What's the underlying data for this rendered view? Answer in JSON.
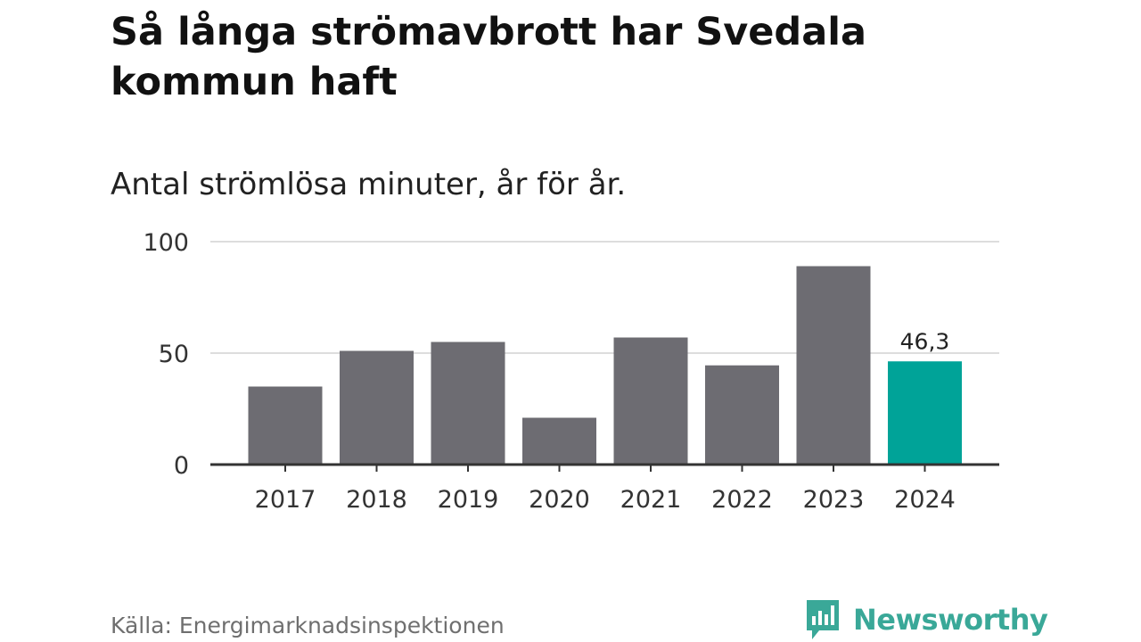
{
  "title": "Så långa strömavbrott har Svedala kommun haft",
  "subtitle": "Antal strömlösa minuter, år för år.",
  "source": "Källa: Energimarknadsinspektionen",
  "brand": {
    "name": "Newsworthy",
    "logo_icon": "bar-chart-speech-bubble-icon"
  },
  "colors": {
    "bar": "#6d6c72",
    "highlight": "#00a398",
    "grid": "#dddddd",
    "axis": "#333333",
    "brand": "#3aa898"
  },
  "chart_data": {
    "type": "bar",
    "title": "Så långa strömavbrott har Svedala kommun haft",
    "subtitle": "Antal strömlösa minuter, år för år.",
    "xlabel": "",
    "ylabel": "",
    "categories": [
      "2017",
      "2018",
      "2019",
      "2020",
      "2021",
      "2022",
      "2023",
      "2024"
    ],
    "values": [
      35,
      51,
      55,
      21,
      57,
      44.5,
      89,
      46.3
    ],
    "highlight_index": 7,
    "data_labels": [
      {
        "index": 7,
        "text": "46,3"
      }
    ],
    "yticks": [
      0,
      50,
      100
    ],
    "ytick_labels": [
      "0",
      "50",
      "100"
    ],
    "ylim": [
      0,
      100
    ],
    "grid": true,
    "legend": "none"
  }
}
